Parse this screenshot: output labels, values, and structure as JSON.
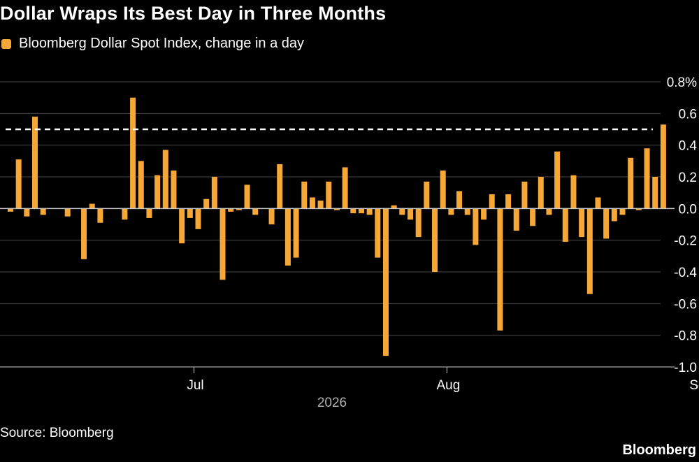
{
  "title": "Dollar Wraps Its Best Day in Three Months",
  "legend": {
    "label": "Bloomberg Dollar Spot Index, change in a day"
  },
  "source": "Source: Bloomberg",
  "brand": "Bloomberg",
  "colors": {
    "bar": "#f7a736",
    "grid": "#4a4a4a",
    "axis": "#c9c9c9",
    "reference": "#ffffff",
    "year_label": "#b0b0b0"
  },
  "chart_data": {
    "type": "bar",
    "title": "Dollar Wraps Its Best Day in Three Months",
    "series": [
      {
        "name": "Bloomberg Dollar Spot Index, change in a day"
      }
    ],
    "ylim": [
      -1.0,
      0.8
    ],
    "y_ticks": [
      "0.8%",
      "0.6",
      "0.4",
      "0.2",
      "0.0",
      "-0.2",
      "-0.4",
      "-0.6",
      "-0.8",
      "-1.0"
    ],
    "y_tick_values": [
      0.8,
      0.6,
      0.4,
      0.2,
      0.0,
      -0.2,
      -0.4,
      -0.6,
      -0.8,
      -1.0
    ],
    "x_ticks": [
      {
        "label": "Jul",
        "date": "2026-07-01"
      },
      {
        "label": "Aug",
        "date": "2026-08-01"
      },
      {
        "label": "Sep",
        "date": "2026-09-01"
      }
    ],
    "x_range": [
      "2026-06-08",
      "2026-09-30"
    ],
    "year_label": "2026",
    "reference_line": 0.5,
    "grid": true,
    "bars": [
      {
        "date": "2026-06-08",
        "value": -0.02
      },
      {
        "date": "2026-06-09",
        "value": 0.31
      },
      {
        "date": "2026-06-10",
        "value": -0.05
      },
      {
        "date": "2026-06-11",
        "value": 0.58
      },
      {
        "date": "2026-06-12",
        "value": -0.04
      },
      {
        "date": "2026-06-15",
        "value": -0.05
      },
      {
        "date": "2026-06-17",
        "value": -0.32
      },
      {
        "date": "2026-06-18",
        "value": 0.03
      },
      {
        "date": "2026-06-19",
        "value": -0.09
      },
      {
        "date": "2026-06-22",
        "value": -0.07
      },
      {
        "date": "2026-06-23",
        "value": 0.7
      },
      {
        "date": "2026-06-24",
        "value": 0.3
      },
      {
        "date": "2026-06-25",
        "value": -0.06
      },
      {
        "date": "2026-06-26",
        "value": 0.21
      },
      {
        "date": "2026-06-27",
        "value": 0.37
      },
      {
        "date": "2026-06-28",
        "value": 0.24
      },
      {
        "date": "2026-06-29",
        "value": -0.22
      },
      {
        "date": "2026-06-30",
        "value": -0.06
      },
      {
        "date": "2026-07-01",
        "value": -0.13
      },
      {
        "date": "2026-07-02",
        "value": 0.06
      },
      {
        "date": "2026-07-03",
        "value": 0.2
      },
      {
        "date": "2026-07-04",
        "value": -0.45
      },
      {
        "date": "2026-07-05",
        "value": -0.02
      },
      {
        "date": "2026-07-06",
        "value": -0.01
      },
      {
        "date": "2026-07-07",
        "value": 0.15
      },
      {
        "date": "2026-07-08",
        "value": -0.04
      },
      {
        "date": "2026-07-10",
        "value": -0.1
      },
      {
        "date": "2026-07-11",
        "value": 0.28
      },
      {
        "date": "2026-07-12",
        "value": -0.36
      },
      {
        "date": "2026-07-13",
        "value": -0.31
      },
      {
        "date": "2026-07-14",
        "value": 0.17
      },
      {
        "date": "2026-07-15",
        "value": 0.07
      },
      {
        "date": "2026-07-16",
        "value": 0.05
      },
      {
        "date": "2026-07-17",
        "value": 0.17
      },
      {
        "date": "2026-07-18",
        "value": -0.01
      },
      {
        "date": "2026-07-19",
        "value": 0.26
      },
      {
        "date": "2026-07-20",
        "value": -0.03
      },
      {
        "date": "2026-07-21",
        "value": -0.03
      },
      {
        "date": "2026-07-22",
        "value": -0.04
      },
      {
        "date": "2026-07-23",
        "value": -0.31
      },
      {
        "date": "2026-07-24",
        "value": -0.93
      },
      {
        "date": "2026-07-25",
        "value": 0.02
      },
      {
        "date": "2026-07-26",
        "value": -0.04
      },
      {
        "date": "2026-07-27",
        "value": -0.07
      },
      {
        "date": "2026-07-28",
        "value": -0.18
      },
      {
        "date": "2026-07-29",
        "value": 0.17
      },
      {
        "date": "2026-07-30",
        "value": -0.4
      },
      {
        "date": "2026-07-31",
        "value": 0.24
      },
      {
        "date": "2026-08-01",
        "value": -0.04
      },
      {
        "date": "2026-08-02",
        "value": 0.11
      },
      {
        "date": "2026-08-03",
        "value": -0.04
      },
      {
        "date": "2026-08-04",
        "value": -0.23
      },
      {
        "date": "2026-08-05",
        "value": -0.07
      },
      {
        "date": "2026-08-06",
        "value": 0.09
      },
      {
        "date": "2026-08-07",
        "value": -0.77
      },
      {
        "date": "2026-08-08",
        "value": 0.09
      },
      {
        "date": "2026-08-09",
        "value": -0.14
      },
      {
        "date": "2026-08-10",
        "value": 0.17
      },
      {
        "date": "2026-08-11",
        "value": -0.11
      },
      {
        "date": "2026-08-12",
        "value": 0.2
      },
      {
        "date": "2026-08-13",
        "value": -0.04
      },
      {
        "date": "2026-08-14",
        "value": 0.36
      },
      {
        "date": "2026-08-15",
        "value": -0.21
      },
      {
        "date": "2026-08-16",
        "value": 0.21
      },
      {
        "date": "2026-08-17",
        "value": -0.18
      },
      {
        "date": "2026-08-18",
        "value": -0.54
      },
      {
        "date": "2026-08-19",
        "value": 0.07
      },
      {
        "date": "2026-08-20",
        "value": -0.19
      },
      {
        "date": "2026-08-21",
        "value": -0.08
      },
      {
        "date": "2026-08-22",
        "value": -0.04
      },
      {
        "date": "2026-08-23",
        "value": 0.32
      },
      {
        "date": "2026-08-24",
        "value": -0.01
      },
      {
        "date": "2026-08-25",
        "value": 0.38
      },
      {
        "date": "2026-08-26",
        "value": 0.2
      },
      {
        "date": "2026-08-27",
        "value": 0.53
      }
    ]
  }
}
